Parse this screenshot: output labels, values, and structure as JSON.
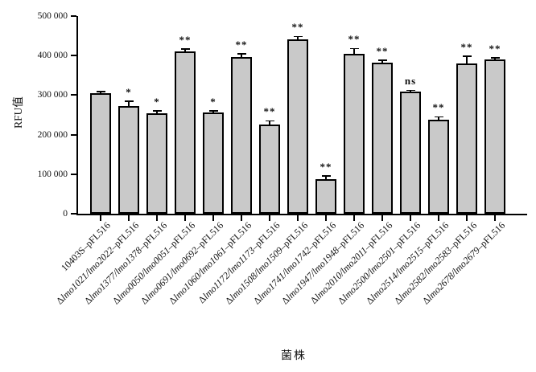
{
  "figure": {
    "background_color": "#ffffff",
    "axis_color": "#000000",
    "text_color": "#111111"
  },
  "chart_data": {
    "type": "bar",
    "title": "",
    "xlabel": "菌株",
    "ylabel": "RFU值",
    "ylim": [
      0,
      500000
    ],
    "grid": false,
    "legend": "none",
    "bar_fill": "#c9c9c9",
    "bar_border": "#000000",
    "yticks": [
      0,
      100000,
      200000,
      300000,
      400000,
      500000
    ],
    "ytick_labels": [
      "0",
      "100 000",
      "200 000",
      "300 000",
      "400 000",
      "500 000"
    ],
    "categories": [
      "10403S–pFL516",
      "Δlmo1021/lmo2022–pFL516",
      "Δlmo1377/lmo1378–pFL516",
      "Δlmo0050/lmo0051–pFL516",
      "Δlmo0691/lmo0692–pFL516",
      "Δlmo1060/lmo1061–pFL516",
      "Δlmo1172/lmo1173–pFL516",
      "Δlmo1508/lmo1509–pFL516",
      "Δlmo1741/lmo1742–pFL516",
      "Δlmo1947/lmo1948–pFL516",
      "Δlmo2010/lmo2011–pFL516",
      "Δlmo2500/lmo2501–pFL516",
      "Δlmo2514/lmo2515–pFL516",
      "Δlmo2582/lmo2583–pFL516",
      "Δlmo2678/lmo2679–pFL516"
    ],
    "category_parts": [
      {
        "pre": "",
        "italic": "",
        "post": "10403S–pFL516"
      },
      {
        "pre": "Δ",
        "italic": "lmo1021/lmo2022",
        "post": "–pFL516"
      },
      {
        "pre": "Δ",
        "italic": "lmo1377/lmo1378",
        "post": "–pFL516"
      },
      {
        "pre": "Δ",
        "italic": "lmo0050/lmo0051",
        "post": "–pFL516"
      },
      {
        "pre": "Δ",
        "italic": "lmo0691/lmo0692",
        "post": "–pFL516"
      },
      {
        "pre": "Δ",
        "italic": "lmo1060/lmo1061",
        "post": "–pFL516"
      },
      {
        "pre": "Δ",
        "italic": "lmo1172/lmo1173",
        "post": "–pFL516"
      },
      {
        "pre": "Δ",
        "italic": "lmo1508/lmo1509",
        "post": "–pFL516"
      },
      {
        "pre": "Δ",
        "italic": "lmo1741/lmo1742",
        "post": "–pFL516"
      },
      {
        "pre": "Δ",
        "italic": "lmo1947/lmo1948",
        "post": "–pFL516"
      },
      {
        "pre": "Δ",
        "italic": "lmo2010/lmo2011",
        "post": "–pFL516"
      },
      {
        "pre": "Δ",
        "italic": "lmo2500/lmo2501",
        "post": "–pFL516"
      },
      {
        "pre": "Δ",
        "italic": "lmo2514/lmo2515",
        "post": "–pFL516"
      },
      {
        "pre": "Δ",
        "italic": "lmo2582/lmo2583",
        "post": "–pFL516"
      },
      {
        "pre": "Δ",
        "italic": "lmo2678/lmo2679",
        "post": "–pFL516"
      }
    ],
    "values": [
      305000,
      272000,
      255000,
      411000,
      256000,
      396000,
      226000,
      442000,
      88000,
      404000,
      382000,
      309000,
      237000,
      381000,
      390000
    ],
    "errors": [
      4000,
      13000,
      6000,
      6000,
      5000,
      9000,
      9000,
      7000,
      8000,
      14000,
      7000,
      3000,
      8000,
      18000,
      5000
    ],
    "significance": [
      "",
      "*",
      "*",
      "**",
      "*",
      "**",
      "**",
      "**",
      "**",
      "**",
      "**",
      "ns",
      "**",
      "**",
      "**"
    ]
  }
}
